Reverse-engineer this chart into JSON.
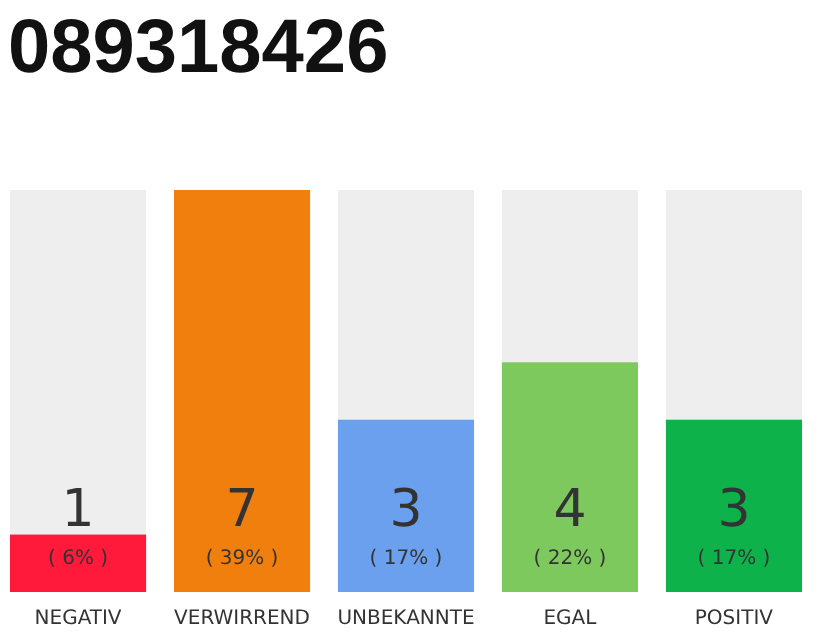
{
  "chart_data": {
    "type": "bar",
    "title": "089318426",
    "categories": [
      "NEGATIV",
      "VERWIRREND",
      "UNBEKANNTE",
      "EGAL",
      "POSITIV"
    ],
    "values": [
      1,
      7,
      3,
      4,
      3
    ],
    "colors": [
      "#ff1a3c",
      "#f07f0d",
      "#6aa0ee",
      "#7dc95e",
      "#0db34a"
    ],
    "data_labels": true,
    "annotations": [
      "( 6% )",
      "( 39% )",
      "( 17% )",
      "( 22% )",
      "( 17% )"
    ]
  }
}
